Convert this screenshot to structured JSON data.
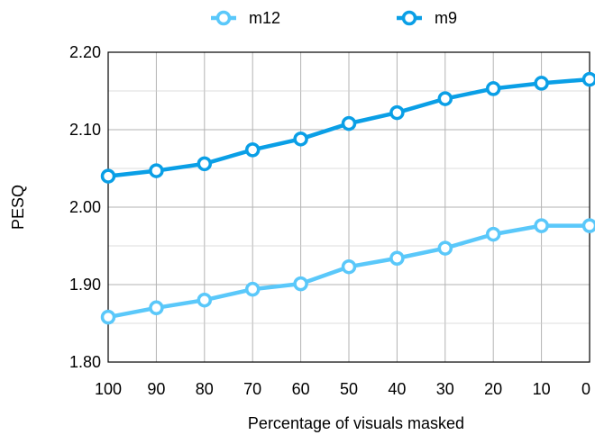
{
  "chart_data": {
    "type": "line",
    "title": "",
    "xlabel": "Percentage of visuals masked",
    "ylabel": "PESQ",
    "x": [
      100,
      90,
      80,
      70,
      60,
      50,
      40,
      30,
      20,
      10,
      0
    ],
    "x_tick_labels": [
      "100",
      "90",
      "80",
      "70",
      "60",
      "50",
      "40",
      "30",
      "20",
      "10",
      "0"
    ],
    "x_reversed": true,
    "ylim": [
      1.8,
      2.2
    ],
    "y_ticks": [
      1.8,
      1.9,
      2.0,
      2.1,
      2.2
    ],
    "y_tick_labels": [
      "1.80",
      "1.90",
      "2.00",
      "2.10",
      "2.20"
    ],
    "grid": true,
    "legend_position": "top-center",
    "series": [
      {
        "name": "m12",
        "color": "#5ac8fa",
        "values": [
          1.858,
          1.87,
          1.88,
          1.894,
          1.901,
          1.923,
          1.934,
          1.947,
          1.965,
          1.976,
          1.976
        ]
      },
      {
        "name": "m9",
        "color": "#0a9fe6",
        "values": [
          2.04,
          2.047,
          2.056,
          2.074,
          2.088,
          2.108,
          2.122,
          2.14,
          2.153,
          2.16,
          2.165
        ]
      }
    ]
  }
}
